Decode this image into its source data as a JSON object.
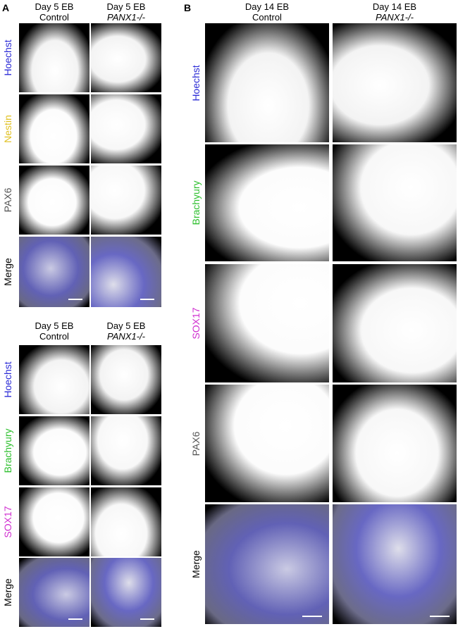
{
  "panel_a": {
    "label": "A",
    "top_columns": [
      {
        "line1": "Day 5 EB",
        "line2": "Control"
      },
      {
        "line1": "Day 5 EB",
        "line2": "PANX1-/-"
      }
    ],
    "top_rows": [
      "Hoechst",
      "Nestin",
      "PAX6",
      "Merge"
    ],
    "bottom_columns": [
      {
        "line1": "Day 5 EB",
        "line2": "Control"
      },
      {
        "line1": "Day 5 EB",
        "line2": "PANX1-/-"
      }
    ],
    "bottom_rows": [
      "Hoechst",
      "Brachyury",
      "SOX17",
      "Merge"
    ]
  },
  "panel_b": {
    "label": "B",
    "columns": [
      {
        "line1": "Day 14 EB",
        "line2": "Control"
      },
      {
        "line1": "Day 14 EB",
        "line2": "PANX1-/-"
      }
    ],
    "rows": [
      "Hoechst",
      "Brachyury",
      "SOX17",
      "PAX6",
      "Merge"
    ]
  }
}
